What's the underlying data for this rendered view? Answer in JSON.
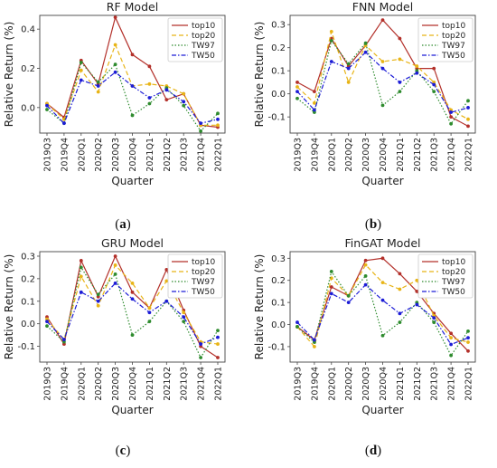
{
  "chart_data": [
    {
      "type": "line",
      "title": "RF Model",
      "caption": "(a)",
      "xlabel": "Quarter",
      "ylabel": "Relative Return (%)",
      "categories": [
        "2019Q3",
        "2019Q4",
        "2020Q1",
        "2020Q2",
        "2020Q3",
        "2020Q4",
        "2021Q1",
        "2021Q2",
        "2021Q3",
        "2021Q4",
        "2022Q1"
      ],
      "ylim": [
        -0.13,
        0.47
      ],
      "yticks": [
        0.0,
        0.2,
        0.4
      ],
      "series": [
        {
          "name": "top10",
          "values": [
            0.02,
            -0.05,
            0.24,
            0.12,
            0.46,
            0.27,
            0.21,
            0.04,
            0.07,
            -0.09,
            -0.1
          ]
        },
        {
          "name": "top20",
          "values": [
            0.02,
            -0.06,
            0.19,
            0.08,
            0.32,
            0.11,
            0.12,
            0.11,
            0.07,
            -0.09,
            -0.09
          ]
        },
        {
          "name": "TW97",
          "values": [
            -0.01,
            -0.08,
            0.23,
            0.13,
            0.22,
            -0.04,
            0.02,
            0.1,
            0.01,
            -0.12,
            -0.03
          ]
        },
        {
          "name": "TW50",
          "values": [
            0.01,
            -0.08,
            0.14,
            0.11,
            0.18,
            0.11,
            0.05,
            0.09,
            0.03,
            -0.08,
            -0.06
          ]
        }
      ],
      "legend": "top-right",
      "grid": false
    },
    {
      "type": "line",
      "title": "FNN Model",
      "caption": "(b)",
      "xlabel": "Quarter",
      "ylabel": "Relative Return (%)",
      "categories": [
        "2019Q3",
        "2019Q4",
        "2020Q1",
        "2020Q2",
        "2020Q3",
        "2020Q4",
        "2021Q1",
        "2021Q2",
        "2021Q3",
        "2021Q4",
        "2022Q1"
      ],
      "ylim": [
        -0.17,
        0.34
      ],
      "yticks": [
        -0.1,
        0.0,
        0.1,
        0.2,
        0.3
      ],
      "series": [
        {
          "name": "top10",
          "values": [
            0.05,
            0.01,
            0.24,
            0.12,
            0.21,
            0.32,
            0.24,
            0.11,
            0.11,
            -0.1,
            -0.14
          ]
        },
        {
          "name": "top20",
          "values": [
            0.03,
            -0.04,
            0.27,
            0.05,
            0.21,
            0.14,
            0.15,
            0.12,
            0.05,
            -0.07,
            -0.11
          ]
        },
        {
          "name": "TW97",
          "values": [
            -0.02,
            -0.08,
            0.23,
            0.13,
            0.22,
            -0.05,
            0.01,
            0.1,
            0.01,
            -0.13,
            -0.03
          ]
        },
        {
          "name": "TW50",
          "values": [
            0.01,
            -0.07,
            0.14,
            0.11,
            0.18,
            0.11,
            0.05,
            0.09,
            0.04,
            -0.08,
            -0.06
          ]
        }
      ],
      "legend": "top-right",
      "grid": false
    },
    {
      "type": "line",
      "title": "GRU Model",
      "caption": "(c)",
      "xlabel": "Quarter",
      "ylabel": "Relative Return (%)",
      "categories": [
        "2019Q3",
        "2019Q4",
        "2020Q1",
        "2020Q2",
        "2020Q3",
        "2020Q4",
        "2021Q1",
        "2021Q2",
        "2021Q3",
        "2021Q4",
        "2022Q1"
      ],
      "ylim": [
        -0.17,
        0.32
      ],
      "yticks": [
        -0.1,
        0.0,
        0.1,
        0.2,
        0.3
      ],
      "series": [
        {
          "name": "top10",
          "values": [
            0.03,
            -0.09,
            0.28,
            0.12,
            0.3,
            0.14,
            0.07,
            0.24,
            0.06,
            -0.1,
            -0.15
          ]
        },
        {
          "name": "top20",
          "values": [
            0.02,
            -0.07,
            0.21,
            0.08,
            0.26,
            0.18,
            0.07,
            0.19,
            0.05,
            -0.08,
            -0.09
          ]
        },
        {
          "name": "TW97",
          "values": [
            -0.01,
            -0.08,
            0.25,
            0.13,
            0.22,
            -0.05,
            0.01,
            0.1,
            0.01,
            -0.15,
            -0.03
          ]
        },
        {
          "name": "TW50",
          "values": [
            0.01,
            -0.07,
            0.14,
            0.1,
            0.18,
            0.11,
            0.05,
            0.1,
            0.03,
            -0.09,
            -0.06
          ]
        }
      ],
      "legend": "top-right",
      "grid": false
    },
    {
      "type": "line",
      "title": "FinGAT Model",
      "caption": "(d)",
      "xlabel": "Quarter",
      "ylabel": "Relative Return (%)",
      "categories": [
        "2019Q3",
        "2019Q4",
        "2020Q1",
        "2020Q2",
        "2020Q3",
        "2020Q4",
        "2021Q1",
        "2021Q2",
        "2021Q3",
        "2021Q4",
        "2022Q1"
      ],
      "ylim": [
        -0.17,
        0.33
      ],
      "yticks": [
        -0.1,
        0.0,
        0.1,
        0.2,
        0.3
      ],
      "series": [
        {
          "name": "top10",
          "values": [
            -0.01,
            -0.07,
            0.17,
            0.13,
            0.29,
            0.3,
            0.23,
            0.15,
            0.05,
            -0.04,
            -0.12
          ]
        },
        {
          "name": "top20",
          "values": [
            -0.01,
            -0.1,
            0.21,
            0.13,
            0.27,
            0.19,
            0.16,
            0.2,
            0.04,
            -0.06,
            -0.08
          ]
        },
        {
          "name": "TW97",
          "values": [
            -0.01,
            -0.08,
            0.24,
            0.13,
            0.22,
            -0.05,
            0.01,
            0.1,
            0.01,
            -0.14,
            -0.03
          ]
        },
        {
          "name": "TW50",
          "values": [
            0.01,
            -0.07,
            0.14,
            0.1,
            0.18,
            0.11,
            0.05,
            0.09,
            0.03,
            -0.09,
            -0.06
          ]
        }
      ],
      "legend": "top-right",
      "grid": false
    }
  ],
  "series_colors": {
    "top10": "#b3302a",
    "top20": "#e8b416",
    "TW97": "#2e8b2e",
    "TW50": "#1c1cd6"
  },
  "series_dash": {
    "top10": "solid",
    "top20": "dashed",
    "TW97": "dotted",
    "TW50": "dashdot"
  }
}
